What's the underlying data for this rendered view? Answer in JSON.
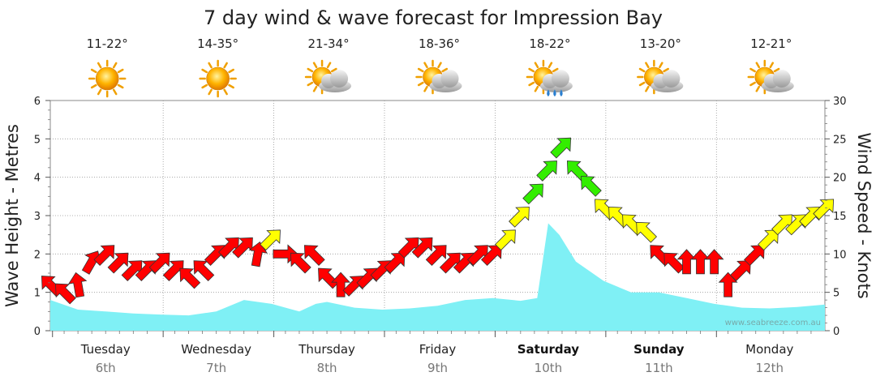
{
  "chart_data": {
    "type": "line",
    "title": "7 day wind & wave forecast for Impression Bay",
    "ylabel_left": "Wave Height - Metres",
    "ylabel_right": "Wind Speed - Knots",
    "ylim_left": [
      0,
      6
    ],
    "ylim_right": [
      0,
      30
    ],
    "yticks_left": [
      "0",
      "1",
      "2",
      "3",
      "4",
      "5",
      "6"
    ],
    "yticks_right": [
      "0",
      "5",
      "10",
      "15",
      "20",
      "25",
      "30"
    ],
    "grid": true,
    "watermark": "www.seabreeze.com.au",
    "colors": {
      "wave_fill": "#7ff0f5",
      "wind_low": "#ff0000",
      "wind_mid": "#ffff00",
      "wind_high": "#33ee00"
    },
    "days": [
      {
        "name": "Tuesday",
        "date": "6th",
        "temp": "11-22°",
        "weather": "sunny-icon",
        "bold": false
      },
      {
        "name": "Wednesday",
        "date": "7th",
        "temp": "14-35°",
        "weather": "sunny-icon",
        "bold": false
      },
      {
        "name": "Thursday",
        "date": "8th",
        "temp": "21-34°",
        "weather": "partly-cloudy-icon",
        "bold": false
      },
      {
        "name": "Friday",
        "date": "9th",
        "temp": "18-36°",
        "weather": "partly-cloudy-icon",
        "bold": false
      },
      {
        "name": "Saturday",
        "date": "10th",
        "temp": "18-22°",
        "weather": "partly-cloudy-rain-icon",
        "bold": true
      },
      {
        "name": "Sunday",
        "date": "11th",
        "temp": "13-20°",
        "weather": "partly-cloudy-icon",
        "bold": true
      },
      {
        "name": "Monday",
        "date": "12th",
        "temp": "12-21°",
        "weather": "partly-cloudy-icon",
        "bold": false
      }
    ],
    "series": [
      {
        "name": "Wave Height - Metres",
        "x_day": [
          0,
          0.25,
          0.5,
          0.75,
          1,
          1.25,
          1.5,
          1.75,
          2,
          2.25,
          2.4,
          2.5,
          2.75,
          3,
          3.25,
          3.5,
          3.75,
          4,
          4.25,
          4.4,
          4.5,
          4.6,
          4.75,
          5,
          5.25,
          5.5,
          5.75,
          6,
          6.25,
          6.5,
          6.75,
          7
        ],
        "values": [
          0.8,
          0.55,
          0.5,
          0.45,
          0.42,
          0.4,
          0.5,
          0.8,
          0.7,
          0.5,
          0.7,
          0.75,
          0.6,
          0.55,
          0.58,
          0.65,
          0.8,
          0.85,
          0.78,
          0.85,
          2.8,
          2.5,
          1.8,
          1.3,
          1.0,
          1.0,
          0.85,
          0.7,
          0.6,
          0.58,
          0.62,
          0.68
        ]
      },
      {
        "name": "Wind Speed - Knots",
        "x_day": [
          0,
          0.125,
          0.25,
          0.375,
          0.5,
          0.625,
          0.75,
          0.875,
          1,
          1.125,
          1.25,
          1.375,
          1.5,
          1.625,
          1.75,
          1.875,
          2,
          2.125,
          2.25,
          2.375,
          2.5,
          2.625,
          2.75,
          2.875,
          3,
          3.125,
          3.25,
          3.375,
          3.5,
          3.625,
          3.75,
          3.875,
          4,
          4.125,
          4.25,
          4.375,
          4.5,
          4.625,
          4.75,
          4.875,
          5,
          5.125,
          5.25,
          5.375,
          5.5,
          5.625,
          5.75,
          5.875,
          6,
          6.125,
          6.25,
          6.375,
          6.5,
          6.625,
          6.75,
          6.875,
          7
        ],
        "values": [
          6,
          5,
          6,
          9,
          10,
          9,
          8,
          8,
          9,
          8,
          7,
          8,
          10,
          11,
          11,
          10,
          12,
          10,
          9,
          10,
          7,
          6,
          6,
          7,
          8,
          9,
          11,
          11,
          10,
          9,
          9,
          10,
          10,
          12,
          15,
          18,
          21,
          24,
          21,
          19,
          16,
          15,
          14,
          13,
          10,
          9,
          9,
          9,
          9,
          6,
          8,
          10,
          12,
          14,
          14,
          15,
          16
        ],
        "direction_deg": [
          135,
          135,
          100,
          60,
          45,
          45,
          45,
          45,
          45,
          45,
          135,
          135,
          45,
          45,
          45,
          80,
          45,
          0,
          135,
          135,
          135,
          90,
          45,
          45,
          45,
          45,
          45,
          45,
          45,
          45,
          45,
          45,
          45,
          45,
          45,
          45,
          45,
          45,
          135,
          135,
          135,
          135,
          135,
          135,
          135,
          135,
          90,
          90,
          90,
          90,
          45,
          45,
          45,
          45,
          45,
          45,
          45
        ]
      }
    ]
  }
}
